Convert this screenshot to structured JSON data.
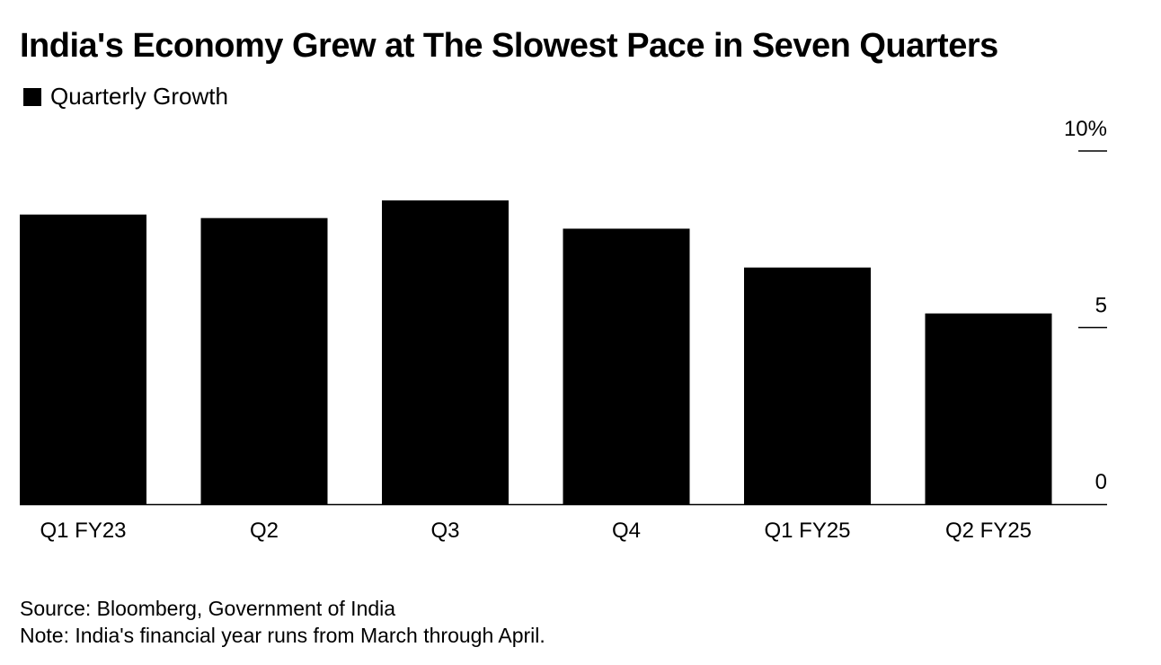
{
  "title": "India's Economy Grew at The Slowest Pace in Seven Quarters",
  "legend": {
    "label": "Quarterly Growth",
    "color": "#000000"
  },
  "footer": {
    "source": "Source: Bloomberg, Government of India",
    "note": "Note: India's financial year runs from March through April."
  },
  "chart_data": {
    "type": "bar",
    "categories": [
      "Q1 FY23",
      "Q2",
      "Q3",
      "Q4",
      "Q1 FY25",
      "Q2 FY25"
    ],
    "series": [
      {
        "name": "Quarterly Growth",
        "values": [
          8.2,
          8.1,
          8.6,
          7.8,
          6.7,
          5.4
        ],
        "color": "#000000"
      }
    ],
    "y_ticks": [
      {
        "value": 10,
        "label": "10%"
      },
      {
        "value": 5,
        "label": "5"
      },
      {
        "value": 0,
        "label": "0"
      }
    ],
    "ylim": [
      0,
      10
    ],
    "yaxis_position": "right",
    "grid": false
  }
}
